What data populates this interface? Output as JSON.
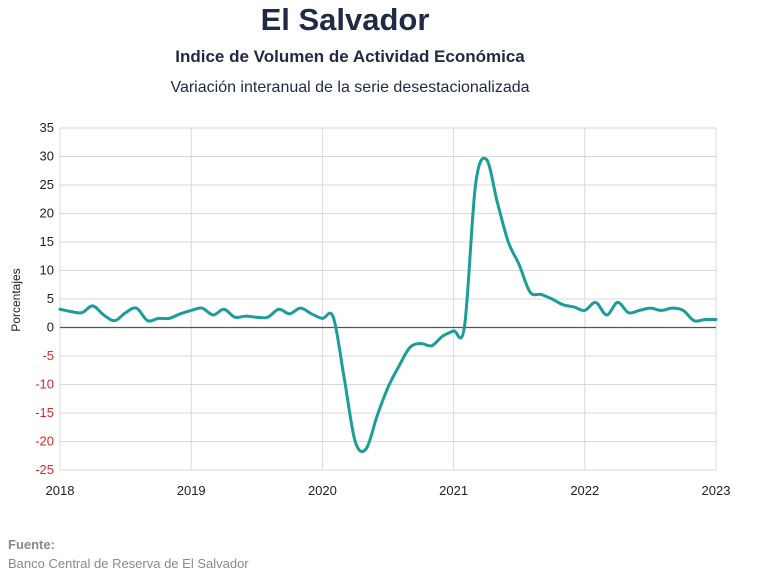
{
  "header": {
    "title": "El Salvador",
    "subtitle": "Indice de Volumen de  Actividad Económica",
    "subtitle2": "Variación interanual de la serie desestacionalizada"
  },
  "footer": {
    "source_label": "Fuente:",
    "source_text": "Banco Central de Reserva de El Salvador"
  },
  "colors": {
    "line": "#1a9e96",
    "negative_tick": "#e0262b",
    "positive_tick": "#222222",
    "grid": "#d9d9d9",
    "zero_line": "#555555"
  },
  "chart_data": {
    "type": "line",
    "title": "El Salvador",
    "xlabel": "",
    "ylabel": "Porcentajes",
    "ylim": [
      -25,
      35
    ],
    "xlim": [
      2018,
      2023
    ],
    "yticks": [
      35,
      30,
      25,
      20,
      15,
      10,
      5,
      0,
      -5,
      -10,
      -15,
      -20,
      -25
    ],
    "xticks": [
      "2018",
      "2019",
      "2020",
      "2021",
      "2022",
      "2023"
    ],
    "grid": true,
    "series": [
      {
        "name": "",
        "x": [
          2018.0,
          2018.083,
          2018.167,
          2018.25,
          2018.333,
          2018.417,
          2018.5,
          2018.583,
          2018.667,
          2018.75,
          2018.833,
          2018.917,
          2019.0,
          2019.083,
          2019.167,
          2019.25,
          2019.333,
          2019.417,
          2019.5,
          2019.583,
          2019.667,
          2019.75,
          2019.833,
          2019.917,
          2020.0,
          2020.083,
          2020.167,
          2020.25,
          2020.333,
          2020.417,
          2020.5,
          2020.583,
          2020.667,
          2020.75,
          2020.833,
          2020.917,
          2021.0,
          2021.083,
          2021.167,
          2021.25,
          2021.333,
          2021.417,
          2021.5,
          2021.583,
          2021.667,
          2021.75,
          2021.833,
          2021.917,
          2022.0,
          2022.083,
          2022.167,
          2022.25,
          2022.333,
          2022.417,
          2022.5,
          2022.583,
          2022.667,
          2022.75,
          2022.833,
          2022.917,
          2023.0
        ],
        "values": [
          3.2,
          2.8,
          2.6,
          3.8,
          2.2,
          1.2,
          2.6,
          3.4,
          1.2,
          1.6,
          1.6,
          2.4,
          3.0,
          3.4,
          2.2,
          3.2,
          1.8,
          2.0,
          1.8,
          1.8,
          3.2,
          2.4,
          3.4,
          2.4,
          1.6,
          1.8,
          -9.0,
          -20.0,
          -21.3,
          -15.5,
          -10.5,
          -6.8,
          -3.5,
          -2.8,
          -3.2,
          -1.5,
          -0.6,
          0.2,
          25.0,
          29.5,
          22.0,
          15.0,
          11.0,
          6.2,
          5.8,
          5.0,
          4.0,
          3.6,
          3.0,
          4.4,
          2.2,
          4.4,
          2.6,
          3.0,
          3.4,
          3.0,
          3.4,
          3.0,
          1.2,
          1.4,
          1.4
        ]
      }
    ]
  }
}
